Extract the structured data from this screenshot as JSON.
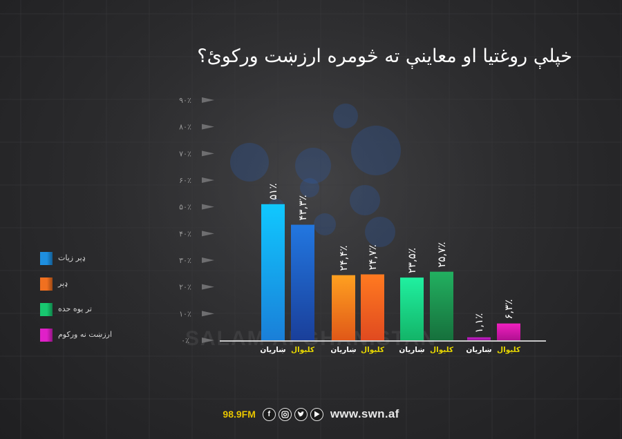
{
  "title": "خپلې روغتیا او معاینې ته څومره ارزښت ورکوئ؟",
  "legend": [
    {
      "label": "ډېر زیات",
      "color": "#1e8fe0"
    },
    {
      "label": "ډېر",
      "color": "#f07020"
    },
    {
      "label": "تر یوه حده",
      "color": "#18c870"
    },
    {
      "label": "ارزښت نه ورکوم",
      "color": "#e020c8"
    }
  ],
  "footer": {
    "frequency": "98.9FM",
    "website": "www.swn.af",
    "icons": [
      "facebook-icon",
      "instagram-icon",
      "twitter-icon",
      "youtube-icon"
    ]
  },
  "watermark": {
    "text": "SALAM AFGHANISTAN"
  },
  "chart_data": {
    "type": "bar",
    "ylim": [
      0,
      90
    ],
    "y_ticks": [
      "۰٪",
      "۱۰٪",
      "۲۰٪",
      "۳۰٪",
      "۴۰٪",
      "۵۰٪",
      "۶۰٪",
      "۷۰٪",
      "۸۰٪",
      "۹۰٪"
    ],
    "categories": [
      "ښاریان",
      "کلیوال",
      "ښاریان",
      "کلیوال",
      "ښاریان",
      "کلیوال",
      "ښاریان",
      "کلیوال"
    ],
    "category_colors": [
      "#ffffff",
      "#e8d800",
      "#ffffff",
      "#e8d800",
      "#ffffff",
      "#e8d800",
      "#ffffff",
      "#e8d800"
    ],
    "values": [
      51,
      43.3,
      24.4,
      24.7,
      23.5,
      25.7,
      1.1,
      6.3
    ],
    "value_labels": [
      "۵۱٪",
      "۴۳,۳٪",
      "۲۴,۴٪",
      "۲۴,۷٪",
      "۲۳,۵٪",
      "۲۵,۷٪",
      "۱,۱٪",
      "۶,۳٪"
    ],
    "bar_colors": [
      [
        "#10c8ff",
        "#1a7fd8"
      ],
      [
        "#2277e0",
        "#1a3f9a"
      ],
      [
        "#ffa020",
        "#e05818"
      ],
      [
        "#ff7a20",
        "#e04a20"
      ],
      [
        "#20f0a0",
        "#13b468"
      ],
      [
        "#22b060",
        "#16703c"
      ],
      [
        "#d020d0",
        "#8a1090"
      ],
      [
        "#f020c0",
        "#b01090"
      ]
    ],
    "groups": [
      "ډېر زیات",
      "ډېر",
      "تر یوه حده",
      "ارزښت نه ورکوم"
    ]
  }
}
